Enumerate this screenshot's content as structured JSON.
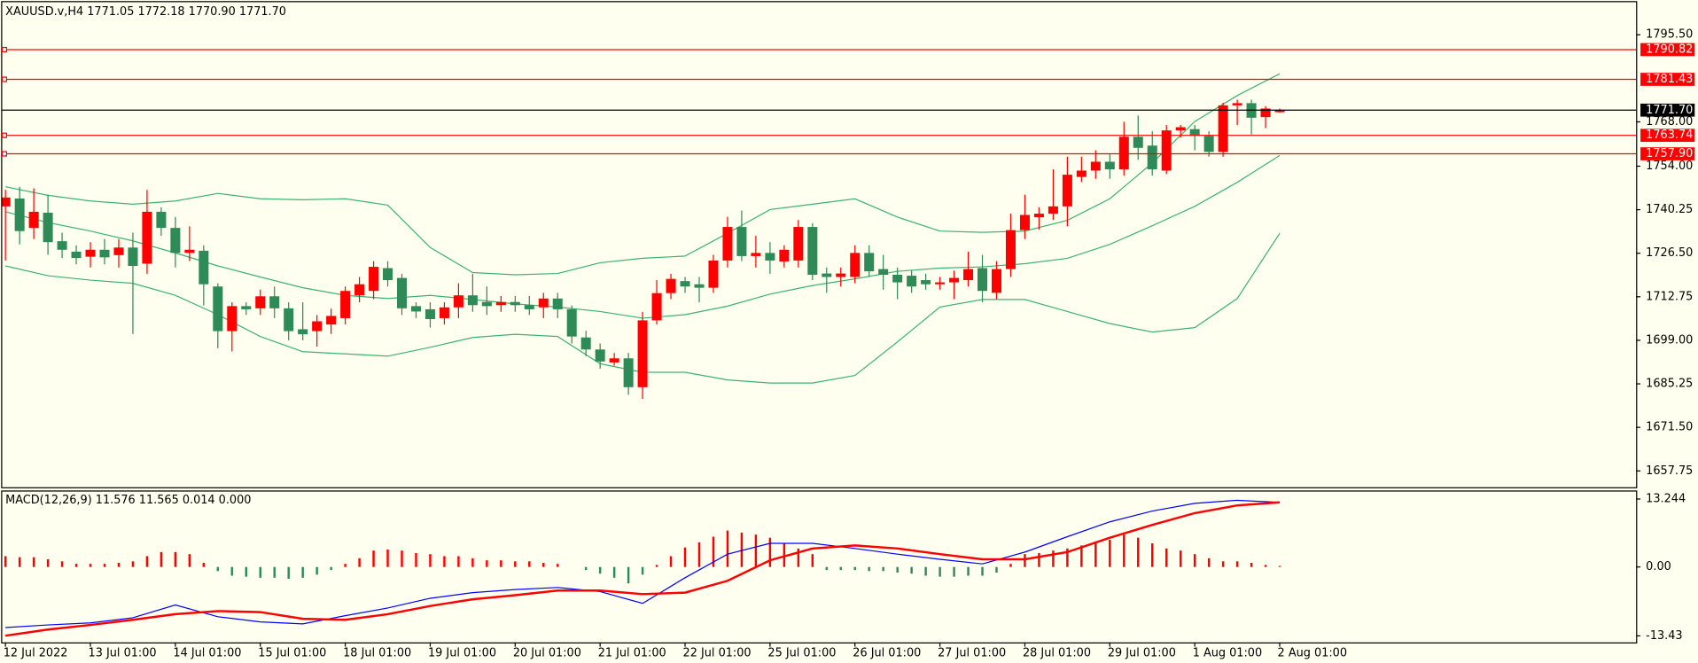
{
  "chart_data": {
    "type": "candlestick",
    "title": "XAUUSD.v,H4  1771.05 1772.18 1770.90 1771.70",
    "categories": [
      "12 Jul 2022",
      null,
      null,
      null,
      null,
      null,
      "13 Jul 01:00",
      null,
      null,
      null,
      null,
      null,
      "14 Jul 01:00",
      null,
      null,
      null,
      null,
      null,
      "15 Jul 01:00",
      null,
      null,
      null,
      null,
      null,
      "18 Jul 01:00",
      null,
      null,
      null,
      null,
      null,
      "19 Jul 01:00",
      null,
      null,
      null,
      null,
      null,
      "20 Jul 01:00",
      null,
      null,
      null,
      null,
      null,
      "21 Jul 01:00",
      null,
      null,
      null,
      null,
      null,
      "22 Jul 01:00",
      null,
      null,
      null,
      null,
      null,
      "25 Jul 01:00",
      null,
      null,
      null,
      null,
      null,
      "26 Jul 01:00",
      null,
      null,
      null,
      null,
      null,
      "27 Jul 01:00",
      null,
      null,
      null,
      null,
      null,
      "28 Jul 01:00",
      null,
      null,
      null,
      null,
      null,
      "29 Jul 01:00",
      null,
      null,
      null,
      null,
      null,
      "1 Aug 01:00",
      null,
      null,
      null,
      null,
      null,
      "2 Aug 01:00"
    ],
    "open": [
      1741.3,
      1743.8,
      1734.5,
      1739.3,
      1730.3,
      1727,
      1725.4,
      1727.6,
      1725.9,
      1728.3,
      1723.2,
      1739.6,
      1734.5,
      1726.6,
      1727.3,
      1716,
      1701.9,
      1709.8,
      1709.1,
      1712.9,
      1709.1,
      1702.5,
      1701.9,
      1704,
      1706,
      1713.2,
      1714.6,
      1721.8,
      1718.7,
      1709.8,
      1708.8,
      1706,
      1709.4,
      1713.2,
      1711.1,
      1710.1,
      1711.1,
      1710.1,
      1709.4,
      1712.2,
      1708.8,
      1699.9,
      1696.1,
      1692,
      1693.3,
      1684.2,
      1705.3,
      1713.9,
      1717.7,
      1716.7,
      1715.6,
      1724.2,
      1734.8,
      1725.6,
      1726.6,
      1723.9,
      1724.2,
      1734.8,
      1720.1,
      1719,
      1719,
      1726.6,
      1721.5,
      1719.7,
      1719.4,
      1718,
      1716.7,
      1717.3,
      1718,
      1721.8,
      1714,
      1721.5,
      1733.8,
      1737.9,
      1739,
      1741.3,
      1750.6,
      1752.6,
      1755.4,
      1753,
      1763.3,
      1760.5,
      1752.6,
      1765.3,
      1765.7,
      1763.6,
      1758.5,
      1773.2,
      1773.9,
      1769.5,
      1771.05
    ],
    "high": [
      1746.5,
      1747.5,
      1747,
      1745,
      1733,
      1729,
      1730,
      1731,
      1731,
      1733,
      1746.5,
      1741,
      1738,
      1735,
      1729,
      1717,
      1711,
      1711,
      1715,
      1716,
      1711,
      1711,
      1707,
      1709,
      1716,
      1719,
      1724,
      1724,
      1720,
      1711,
      1711,
      1711,
      1717,
      1720,
      1716,
      1713,
      1713,
      1713,
      1714,
      1714,
      1710,
      1702,
      1698,
      1695,
      1695,
      1708,
      1718,
      1720,
      1719,
      1719,
      1726,
      1738,
      1740,
      1732,
      1730,
      1729,
      1737,
      1736,
      1722,
      1722,
      1729,
      1729,
      1726,
      1722,
      1721,
      1720,
      1719,
      1721,
      1727,
      1726,
      1724,
      1739,
      1745,
      1741,
      1753,
      1757,
      1757,
      1759,
      1758,
      1768,
      1770,
      1765,
      1767,
      1767,
      1767,
      1765,
      1774,
      1775,
      1775,
      1773,
      1772.18
    ],
    "low": [
      1724.2,
      1729.3,
      1731,
      1726,
      1725,
      1723,
      1722,
      1723,
      1722,
      1701,
      1720,
      1732,
      1722,
      1724,
      1710,
      1696.5,
      1695.5,
      1707,
      1707,
      1706,
      1699,
      1699,
      1697,
      1701,
      1704,
      1711,
      1712,
      1716,
      1707,
      1706,
      1703,
      1704,
      1706,
      1708,
      1707,
      1708,
      1708,
      1707,
      1706,
      1706,
      1698,
      1694,
      1690,
      1691,
      1681.8,
      1680.5,
      1704,
      1712,
      1714,
      1711,
      1714,
      1722,
      1724,
      1722,
      1720,
      1722,
      1722,
      1718,
      1714,
      1716,
      1717,
      1719,
      1715,
      1712,
      1714,
      1715,
      1715,
      1712,
      1716,
      1711,
      1712,
      1719,
      1731,
      1734,
      1737,
      1735,
      1749,
      1750,
      1750,
      1751,
      1756,
      1751,
      1751.5,
      1763,
      1759,
      1757,
      1757,
      1767,
      1764,
      1766,
      1770.9
    ],
    "close": [
      1744.1,
      1733.5,
      1739.6,
      1730,
      1727.6,
      1725,
      1727.6,
      1725.2,
      1728.3,
      1722.5,
      1739.6,
      1734.5,
      1726.6,
      1727.6,
      1716.7,
      1701.9,
      1709.8,
      1708.8,
      1712.9,
      1709.1,
      1701.9,
      1700.9,
      1705,
      1706.7,
      1714.6,
      1716.7,
      1722.2,
      1718,
      1709.1,
      1708.1,
      1705.7,
      1709.4,
      1713.2,
      1710.1,
      1709.8,
      1711.1,
      1710.1,
      1708.8,
      1712.2,
      1708.8,
      1700.2,
      1696.1,
      1692.3,
      1693.3,
      1684.2,
      1705.3,
      1713.9,
      1718.4,
      1716,
      1715.6,
      1724.2,
      1734.8,
      1725.6,
      1726.6,
      1724.2,
      1727.6,
      1734.8,
      1719.7,
      1719,
      1720.1,
      1726.6,
      1720.8,
      1719.7,
      1717.3,
      1716,
      1716.7,
      1717.3,
      1718.7,
      1721.5,
      1714.6,
      1721.5,
      1733.8,
      1738.6,
      1739,
      1741.3,
      1751.3,
      1752.6,
      1755.4,
      1753,
      1763.3,
      1759.8,
      1753,
      1765.3,
      1766.3,
      1763.6,
      1758.5,
      1773.2,
      1773.9,
      1769.3,
      1772.2,
      1771.7
    ],
    "up_color": "#ff0000",
    "down_color": "#2e8b57",
    "ylim": [
      1652.6,
      1805.8
    ],
    "yticks": [
      {
        "value": 1795.5,
        "label": "1795.50"
      },
      {
        "value": 1768,
        "label": "1768.00"
      },
      {
        "value": 1754,
        "label": "1754.00"
      },
      {
        "value": 1740.25,
        "label": "1740.25"
      },
      {
        "value": 1726.5,
        "label": "1726.50"
      },
      {
        "value": 1712.75,
        "label": "1712.75"
      },
      {
        "value": 1699,
        "label": "1699.00"
      },
      {
        "value": 1685.25,
        "label": "1685.25"
      },
      {
        "value": 1671.5,
        "label": "1671.50"
      },
      {
        "value": 1657.75,
        "label": "1657.75"
      }
    ],
    "grid": false,
    "levels": [
      1790.82,
      1781.43,
      1763.74,
      {
        "value": 1757.9,
        "label": "1757.90"
      }
    ],
    "level_color": "#ff0000",
    "price_line": {
      "value": 1771.7,
      "label": "1771.70"
    },
    "bands": {
      "color": "#3cb371",
      "x": [
        0,
        3,
        6,
        9,
        12,
        15,
        18,
        21,
        24,
        27,
        30,
        33,
        36,
        39,
        42,
        45,
        48,
        51,
        54,
        57,
        60,
        63,
        66,
        69,
        72,
        75,
        78,
        81,
        84,
        87,
        90
      ],
      "upper": [
        1747.5,
        1744.8,
        1743,
        1742,
        1743,
        1745.4,
        1743.7,
        1743.4,
        1743.7,
        1741.7,
        1728.3,
        1720.4,
        1719.7,
        1720.1,
        1723.5,
        1724.9,
        1725.6,
        1732.8,
        1740.3,
        1742,
        1743.7,
        1737.9,
        1733.5,
        1733.1,
        1733.5,
        1736.9,
        1743.7,
        1755,
        1768.1,
        1776.3,
        1783.2
      ],
      "middle": [
        1739.6,
        1736.2,
        1733.5,
        1730.4,
        1726.6,
        1722.5,
        1719,
        1715.6,
        1713.2,
        1712.2,
        1713.2,
        1711.9,
        1710.5,
        1709.5,
        1708.1,
        1706,
        1707.1,
        1709.8,
        1713.6,
        1716.3,
        1718.4,
        1720.8,
        1721.8,
        1722.2,
        1723.2,
        1724.9,
        1729.3,
        1735.2,
        1741.3,
        1748.9,
        1757.4
      ],
      "lower": [
        1722.5,
        1719.4,
        1718,
        1717,
        1713.2,
        1707.1,
        1700.2,
        1695.4,
        1694.7,
        1694,
        1696.8,
        1699.9,
        1700.9,
        1700.2,
        1691.6,
        1688.9,
        1688.9,
        1686.5,
        1685.5,
        1685.5,
        1687.9,
        1698.5,
        1709.5,
        1711.9,
        1711.9,
        1708.1,
        1704.3,
        1701.6,
        1703,
        1712.2,
        1732.8
      ]
    },
    "macd": {
      "title": "MACD(12,26,9) 11.576 11.565 0.014 0.000",
      "ylim": [
        -14.7,
        14.7
      ],
      "yticks": [
        13.244,
        {
          "value": 0,
          "label": "0.00"
        },
        -13.43
      ],
      "histogram": [
        2.1,
        1.9,
        1.9,
        1.5,
        1.1,
        0.6,
        0.6,
        0.6,
        0.8,
        1.1,
        2.1,
        2.9,
        2.9,
        2.5,
        0.8,
        -0.8,
        -1.7,
        -1.9,
        -2.1,
        -2.1,
        -2.3,
        -2.1,
        -1.5,
        -0.6,
        0.6,
        1.7,
        3.2,
        3.4,
        3.2,
        2.7,
        2.5,
        2.1,
        2.1,
        1.7,
        1.3,
        1.3,
        1.1,
        1.1,
        0.8,
        0.6,
        0,
        -0.6,
        -1.3,
        -2.1,
        -3.2,
        -1.5,
        0.4,
        2.1,
        3.8,
        4.8,
        5.9,
        7.1,
        6.7,
        6.3,
        5.7,
        4.6,
        3.6,
        2.5,
        -0.6,
        -0.6,
        -0.6,
        -0.8,
        -0.8,
        -1.1,
        -1.3,
        -1.7,
        -1.9,
        -1.9,
        -1.7,
        -1.7,
        -1.1,
        0.6,
        2.5,
        2.7,
        3.2,
        3.6,
        4.2,
        4.6,
        5.3,
        6.3,
        5.7,
        4.6,
        3.6,
        3.2,
        2.5,
        1.7,
        1.1,
        1.1,
        0.8,
        0.4,
        0.2
      ],
      "hist_pos_color": "#ff0000",
      "hist_neg_color": "#2e8b57",
      "x": [
        0,
        3,
        6,
        9,
        12,
        15,
        18,
        21,
        24,
        27,
        30,
        33,
        36,
        39,
        42,
        45,
        48,
        51,
        54,
        57,
        60,
        63,
        66,
        69,
        72,
        75,
        78,
        81,
        84,
        87,
        90
      ],
      "series": [
        {
          "color": "#0000ff",
          "values": [
            -11.8,
            -11.3,
            -10.9,
            -9.9,
            -7.4,
            -9.7,
            -10.7,
            -11.1,
            -9.5,
            -8,
            -6.1,
            -5,
            -4.4,
            -4,
            -4.8,
            -7.1,
            -2.1,
            2.5,
            4.6,
            4.6,
            3.6,
            2.5,
            1.5,
            0.6,
            2.9,
            5.9,
            8.8,
            10.9,
            12.4,
            13,
            12.6
          ]
        },
        {
          "color": "#ff0000",
          "values": [
            -13.4,
            -12.2,
            -11.3,
            -10.3,
            -9.2,
            -8.6,
            -8.8,
            -10.1,
            -10.3,
            -9.2,
            -7.6,
            -6.3,
            -5.5,
            -4.6,
            -4.6,
            -5.3,
            -5,
            -2.7,
            1.3,
            3.6,
            4.2,
            3.6,
            2.5,
            1.5,
            1.5,
            2.9,
            5.7,
            8.2,
            10.5,
            12,
            12.6
          ]
        }
      ]
    }
  }
}
